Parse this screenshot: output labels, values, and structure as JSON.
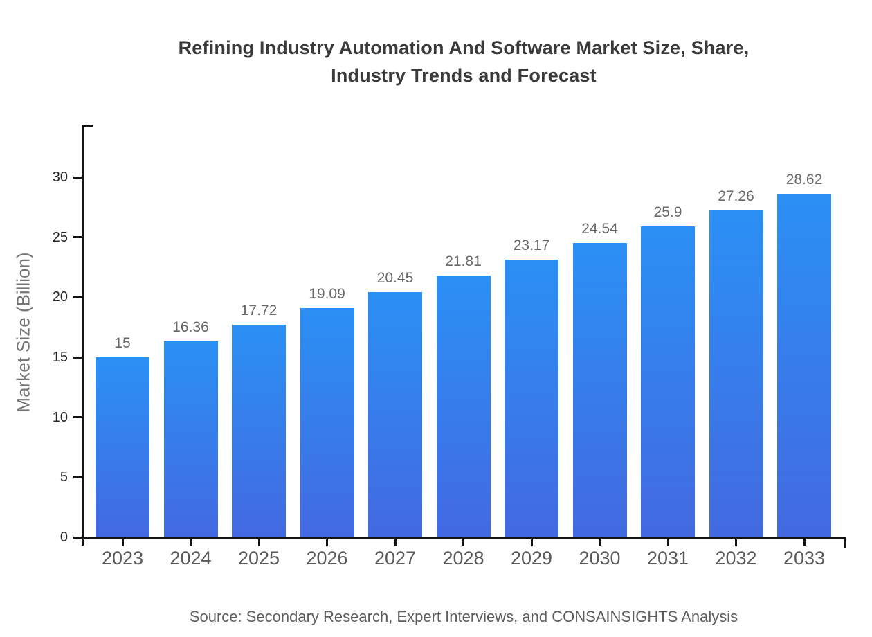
{
  "chart_data": {
    "type": "bar",
    "title": "Refining Industry Automation And Software Market Size, Share, Industry Trends and Forecast",
    "title_lines": [
      "Refining Industry Automation And Software Market Size, Share,",
      "Industry Trends and Forecast"
    ],
    "xlabel": "",
    "ylabel": "Market Size (Billion)",
    "categories": [
      "2023",
      "2024",
      "2025",
      "2026",
      "2027",
      "2028",
      "2029",
      "2030",
      "2031",
      "2032",
      "2033"
    ],
    "values": [
      15,
      16.36,
      17.72,
      19.09,
      20.45,
      21.81,
      23.17,
      24.54,
      25.9,
      27.26,
      28.62
    ],
    "bar_labels": [
      "15",
      "16.36",
      "17.72",
      "19.09",
      "20.45",
      "21.81",
      "23.17",
      "24.54",
      "25.9",
      "27.26",
      "28.62"
    ],
    "yticks": [
      0,
      5,
      10,
      15,
      20,
      25,
      30
    ],
    "ytick_labels": [
      "0",
      "5",
      "10",
      "15",
      "20",
      "25",
      "30"
    ],
    "ylim": [
      0,
      34.4
    ],
    "grid": false,
    "legend": null,
    "colors": {
      "bar_gradient_top": "#2b90f5",
      "bar_gradient_bottom": "#4369e0",
      "axis": "#141414",
      "title_text": "#3a3a3a",
      "y_tick_text": "#262626",
      "x_tick_text": "#5a5a5a",
      "bar_label_text": "#686868",
      "y_axis_title_text": "#757575",
      "source_text": "#5d5d5d"
    },
    "source": "Source: Secondary Research, Expert Interviews, and CONSAINSIGHTS Analysis"
  }
}
